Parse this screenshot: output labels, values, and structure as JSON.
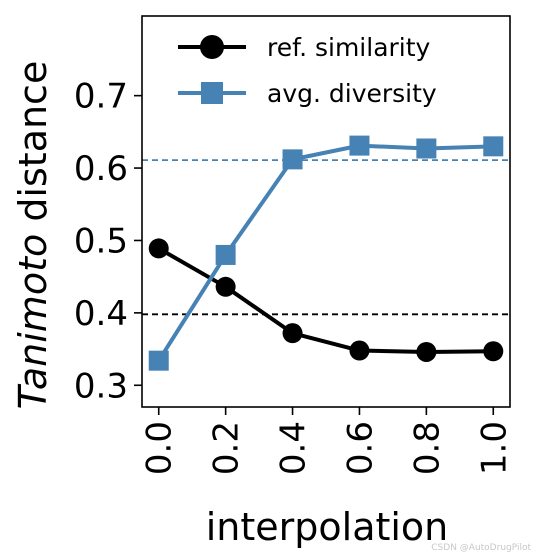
{
  "chart_data": {
    "type": "line",
    "x": [
      0.0,
      0.2,
      0.4,
      0.6,
      0.8,
      1.0
    ],
    "x_tick_labels": [
      "0.0",
      "0.2",
      "0.4",
      "0.6",
      "0.8",
      "1.0"
    ],
    "y_tick_values": [
      0.3,
      0.4,
      0.5,
      0.6,
      0.7
    ],
    "y_tick_labels": [
      "0.3",
      "0.4",
      "0.5",
      "0.6",
      "0.7"
    ],
    "xlim": [
      -0.05,
      1.05
    ],
    "ylim": [
      0.27,
      0.81
    ],
    "xlabel": "interpolation",
    "ylabel_italic": "Tanimoto",
    "ylabel_rest": " distance",
    "legend_position": "top-center",
    "grid": false,
    "series": [
      {
        "name": "ref. similarity",
        "color": "#000000",
        "marker": "circle",
        "values": [
          0.489,
          0.436,
          0.372,
          0.348,
          0.346,
          0.347
        ],
        "reference_line": 0.398
      },
      {
        "name": "avg. diversity",
        "color": "#4682b4",
        "marker": "square",
        "values": [
          0.334,
          0.48,
          0.612,
          0.631,
          0.627,
          0.63
        ],
        "reference_line": 0.611
      }
    ]
  },
  "watermark": "CSDN @AutoDrugPilot"
}
